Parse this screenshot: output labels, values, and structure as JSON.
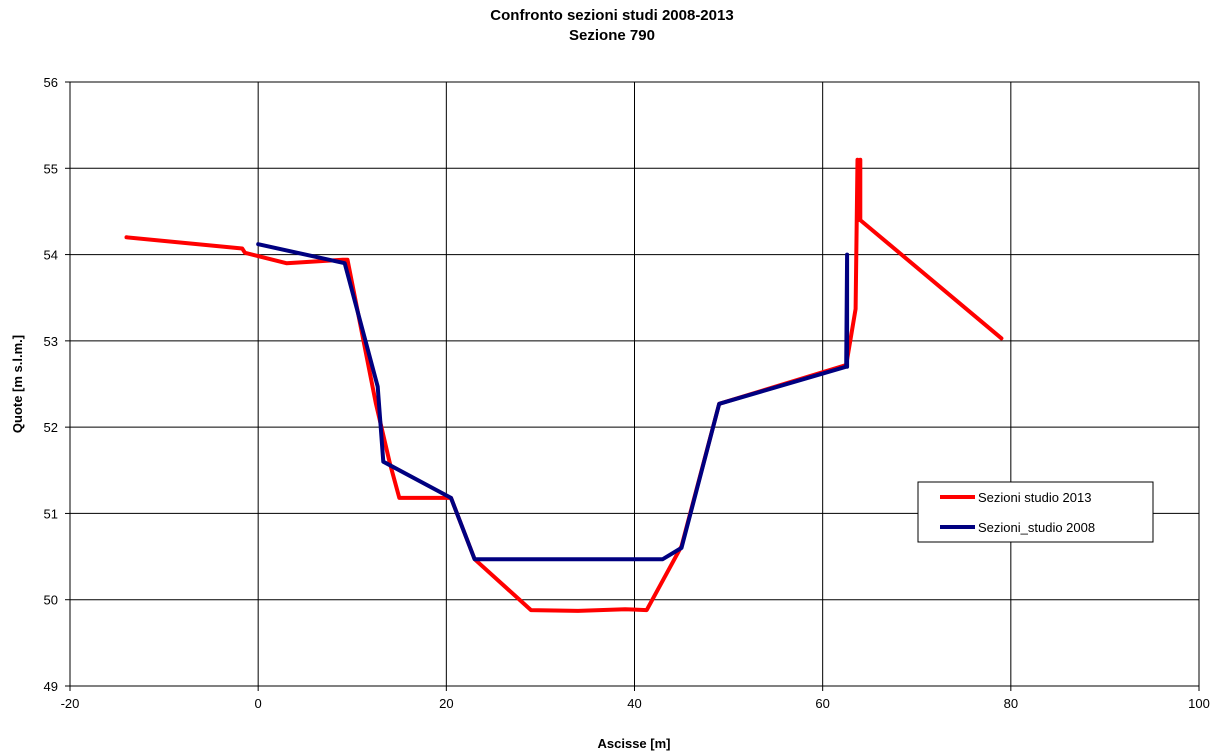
{
  "chart_data": {
    "type": "line",
    "title": "Confronto sezioni studi 2008-2013",
    "subtitle": "Sezione 790",
    "xlabel": "Ascisse [m]",
    "ylabel": "Quote [m s.l.m.]",
    "xlim": [
      -20,
      100
    ],
    "ylim": [
      49,
      56
    ],
    "xticks": [
      -20,
      0,
      20,
      40,
      60,
      80,
      100
    ],
    "yticks": [
      49,
      50,
      51,
      52,
      53,
      54,
      55,
      56
    ],
    "grid": true,
    "legend_position": "right",
    "series": [
      {
        "name": "Sezioni studio 2013",
        "color": "#ff0000",
        "x": [
          -14,
          -1.7,
          -1.4,
          3,
          9,
          9.5,
          12.5,
          14,
          15,
          20.5,
          23,
          29,
          34,
          39,
          41.3,
          45,
          49,
          62.5,
          63.5,
          63.7,
          63.8,
          64,
          64,
          79
        ],
        "y": [
          54.2,
          54.07,
          54.02,
          53.9,
          53.94,
          53.94,
          52.28,
          51.58,
          51.18,
          51.18,
          50.47,
          49.88,
          49.87,
          49.89,
          49.88,
          50.62,
          52.27,
          52.72,
          53.37,
          55.1,
          54.4,
          55.1,
          54.4,
          53.03
        ]
      },
      {
        "name": "Sezioni_studio 2008",
        "color": "#000080",
        "x": [
          0,
          9.2,
          12.7,
          13.3,
          20.5,
          23,
          30,
          43,
          45,
          49,
          62.5,
          62.6,
          62.6
        ],
        "y": [
          54.12,
          53.9,
          52.47,
          51.6,
          51.18,
          50.47,
          50.47,
          50.47,
          50.6,
          52.27,
          52.7,
          54.0,
          52.7
        ]
      }
    ]
  }
}
